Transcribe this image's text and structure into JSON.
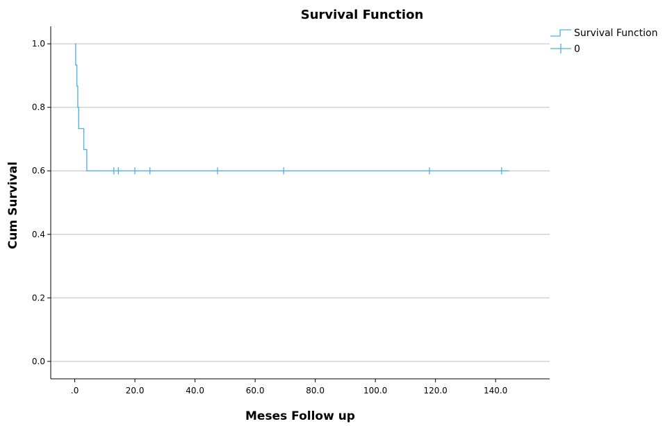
{
  "chart_data": {
    "type": "line",
    "title": "Survival Function",
    "xlabel": "Meses Follow up",
    "ylabel": "Cum Survival",
    "xlim": [
      -8,
      158
    ],
    "ylim": [
      -0.055,
      1.055
    ],
    "x_ticks": [
      {
        "value": 0,
        "label": ".0"
      },
      {
        "value": 20,
        "label": "20.0"
      },
      {
        "value": 40,
        "label": "40.0"
      },
      {
        "value": 60,
        "label": "60.0"
      },
      {
        "value": 80,
        "label": "80.0"
      },
      {
        "value": 100,
        "label": "100.0"
      },
      {
        "value": 120,
        "label": "120.0"
      },
      {
        "value": 140,
        "label": "140.0"
      }
    ],
    "y_ticks": [
      {
        "value": 0.0,
        "label": "0.0"
      },
      {
        "value": 0.2,
        "label": "0.2"
      },
      {
        "value": 0.4,
        "label": "0.4"
      },
      {
        "value": 0.6,
        "label": "0.6"
      },
      {
        "value": 0.8,
        "label": "0.8"
      },
      {
        "value": 1.0,
        "label": "1.0"
      }
    ],
    "grid": "horizontal",
    "legend_placement": "top-right",
    "series": [
      {
        "name": "Survival Function",
        "color": "#4aaee8",
        "step_points": [
          {
            "x": 0.0,
            "y": 1.0
          },
          {
            "x": 0.3,
            "y": 0.933
          },
          {
            "x": 0.7,
            "y": 0.867
          },
          {
            "x": 1.0,
            "y": 0.8
          },
          {
            "x": 1.3,
            "y": 0.733
          },
          {
            "x": 3.0,
            "y": 0.667
          },
          {
            "x": 4.0,
            "y": 0.6
          },
          {
            "x": 144.5,
            "y": 0.6
          }
        ]
      },
      {
        "name": "0",
        "color": "#4aaee8",
        "marker": "plus",
        "censored": [
          {
            "x": 13.0,
            "y": 0.6
          },
          {
            "x": 14.5,
            "y": 0.6
          },
          {
            "x": 20.0,
            "y": 0.6
          },
          {
            "x": 25.0,
            "y": 0.6
          },
          {
            "x": 47.5,
            "y": 0.6
          },
          {
            "x": 69.5,
            "y": 0.6
          },
          {
            "x": 118.0,
            "y": 0.6
          },
          {
            "x": 142.0,
            "y": 0.6
          }
        ]
      }
    ]
  }
}
